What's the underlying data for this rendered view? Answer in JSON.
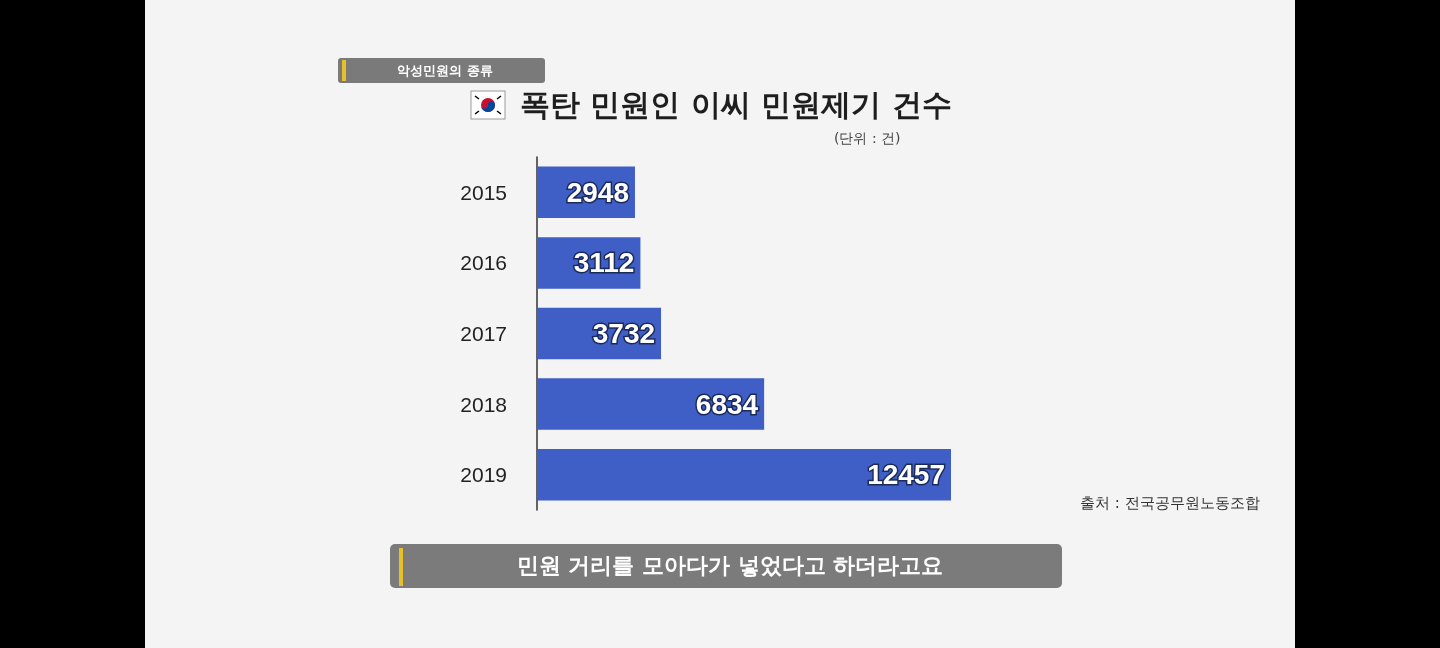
{
  "chart_data": {
    "type": "bar",
    "orientation": "horizontal",
    "title": "폭탄 민원인 이씨 민원제기 건수",
    "annotations": [
      "악성민원의 종류",
      "(단위 : 건)",
      "출처 : 전국공무원노동조합",
      "민원 거리를 모아다가 넣었다고 하더라고요"
    ],
    "categories": [
      "2015",
      "2016",
      "2017",
      "2018",
      "2019"
    ],
    "values": [
      2948,
      3112,
      3732,
      6834,
      12457
    ],
    "color": "#3f5ec6",
    "data_labels": true,
    "tick_labels": "y",
    "grid": false
  }
}
